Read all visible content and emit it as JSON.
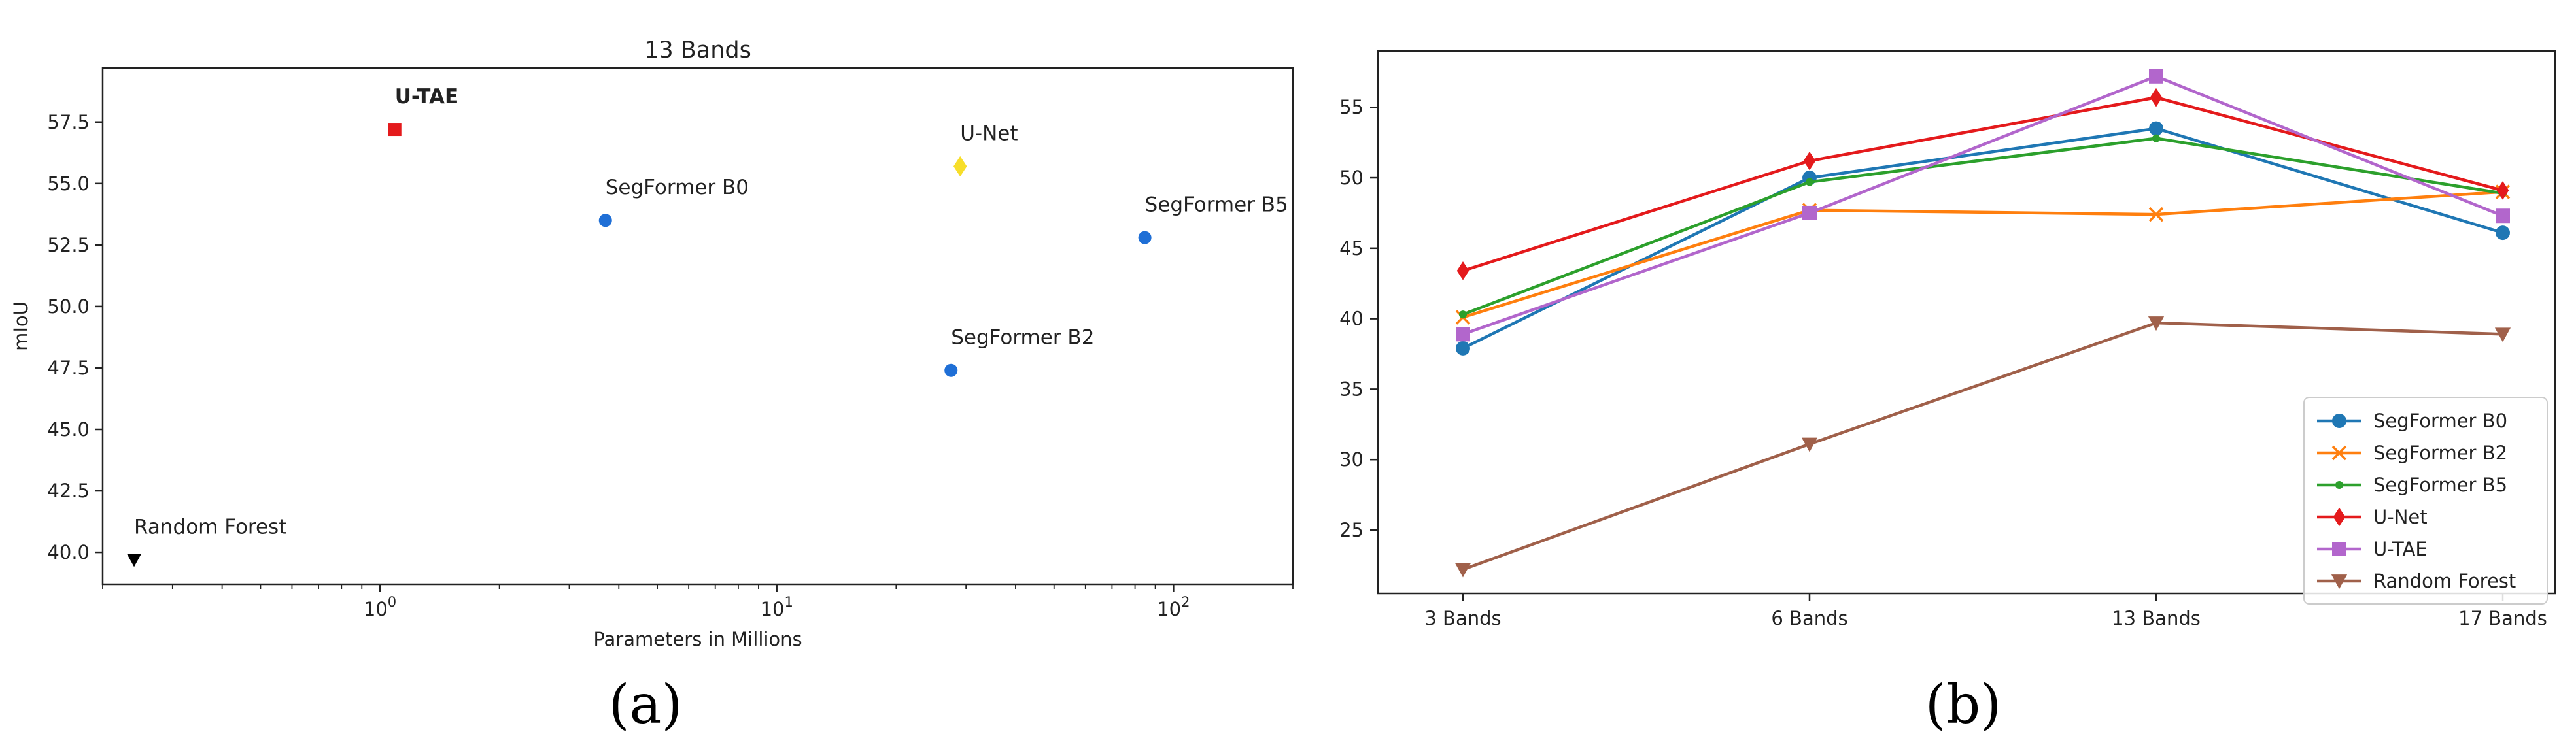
{
  "chart_data": [
    {
      "type": "scatter",
      "title": "13 Bands",
      "xlabel": "Parameters in Millions",
      "ylabel": "mIoU",
      "xscale": "log",
      "xlim": [
        0.2,
        200
      ],
      "ylim": [
        38.7,
        59.7
      ],
      "xticks": [
        {
          "value": 1,
          "base": "10",
          "exp": "0"
        },
        {
          "value": 10,
          "base": "10",
          "exp": "1"
        },
        {
          "value": 100,
          "base": "10",
          "exp": "2"
        }
      ],
      "yticks": [
        {
          "value": 40,
          "label": "40.0"
        },
        {
          "value": 42.5,
          "label": "42.5"
        },
        {
          "value": 45,
          "label": "45.0"
        },
        {
          "value": 47.5,
          "label": "47.5"
        },
        {
          "value": 50,
          "label": "50.0"
        },
        {
          "value": 52.5,
          "label": "52.5"
        },
        {
          "value": 55,
          "label": "55.0"
        },
        {
          "value": 57.5,
          "label": "57.5"
        }
      ],
      "points": [
        {
          "name": "U-TAE",
          "x": 1.09,
          "y": 57.2,
          "marker": "square",
          "color": "#e41a1c",
          "bold": true
        },
        {
          "name": "U-Net",
          "x": 29,
          "y": 55.7,
          "marker": "diamond",
          "color": "#f7de2a",
          "bold": false
        },
        {
          "name": "SegFormer B0",
          "x": 3.7,
          "y": 53.5,
          "marker": "circle",
          "color": "#1f6fd6",
          "bold": false
        },
        {
          "name": "SegFormer B5",
          "x": 84.7,
          "y": 52.8,
          "marker": "circle",
          "color": "#1f6fd6",
          "bold": false
        },
        {
          "name": "SegFormer B2",
          "x": 27.5,
          "y": 47.4,
          "marker": "circle",
          "color": "#1f6fd6",
          "bold": false
        },
        {
          "name": "Random Forest",
          "x": 0.24,
          "y": 39.7,
          "marker": "triangle-down",
          "color": "#000000",
          "bold": false
        }
      ],
      "caption": "(a)"
    },
    {
      "type": "line",
      "categories": [
        "3 Bands",
        "6 Bands",
        "13 Bands",
        "17 Bands"
      ],
      "ylim": [
        20.5,
        59
      ],
      "yticks": [
        25,
        30,
        35,
        40,
        45,
        50,
        55
      ],
      "legend": "bottom-right",
      "series": [
        {
          "name": "SegFormer B0",
          "values": [
            37.9,
            50.0,
            53.5,
            46.1
          ],
          "color": "#1f77b4",
          "marker": "circle"
        },
        {
          "name": "SegFormer B2",
          "values": [
            40.1,
            47.7,
            47.4,
            49.0
          ],
          "color": "#ff7f0e",
          "marker": "x"
        },
        {
          "name": "SegFormer B5",
          "values": [
            40.3,
            49.7,
            52.8,
            48.9
          ],
          "color": "#2ca02c",
          "marker": "point"
        },
        {
          "name": "U-Net",
          "values": [
            43.4,
            51.2,
            55.7,
            49.1
          ],
          "color": "#e41a1c",
          "marker": "diamond"
        },
        {
          "name": "U-TAE",
          "values": [
            38.9,
            47.5,
            57.2,
            47.3
          ],
          "color": "#b266cc",
          "marker": "square"
        },
        {
          "name": "Random Forest",
          "values": [
            22.2,
            31.1,
            39.7,
            38.9
          ],
          "color": "#a0604a",
          "marker": "triangle-down"
        }
      ],
      "caption": "(b)"
    }
  ]
}
